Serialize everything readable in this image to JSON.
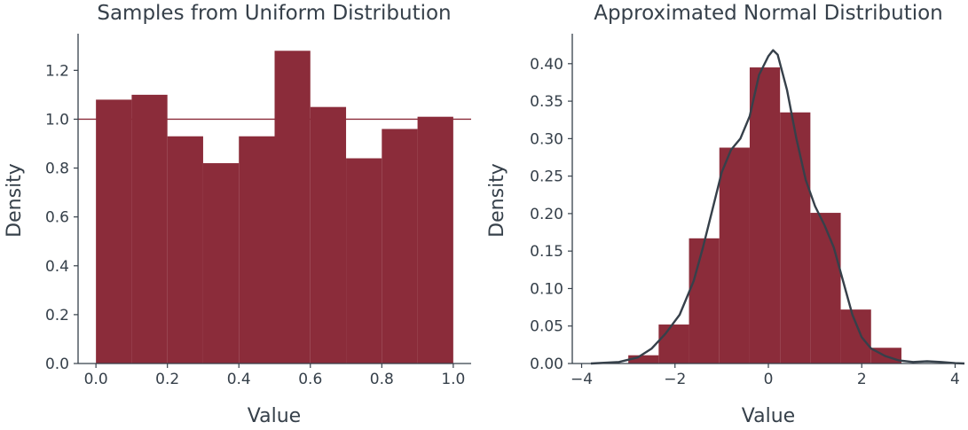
{
  "chart_data": [
    {
      "type": "bar",
      "title": "Samples from Uniform Distribution",
      "xlabel": "Value",
      "ylabel": "Density",
      "xlim": [
        -0.05,
        1.05
      ],
      "ylim": [
        0,
        1.35
      ],
      "xticks": [
        0.0,
        0.2,
        0.4,
        0.6,
        0.8,
        1.0
      ],
      "yticks": [
        0.0,
        0.2,
        0.4,
        0.6,
        0.8,
        1.0,
        1.2
      ],
      "xtick_labels": [
        "0.0",
        "0.2",
        "0.4",
        "0.6",
        "0.8",
        "1.0"
      ],
      "ytick_labels": [
        "0.0",
        "0.2",
        "0.4",
        "0.6",
        "0.8",
        "1.0",
        "1.2"
      ],
      "bin_edges": [
        0.0,
        0.1,
        0.2,
        0.3,
        0.4,
        0.5,
        0.6,
        0.7,
        0.8,
        0.9,
        1.0
      ],
      "values": [
        1.08,
        1.1,
        0.93,
        0.82,
        0.93,
        1.28,
        1.05,
        0.84,
        0.96,
        1.01
      ],
      "reference_line_y": 1.0,
      "bar_color": "#8b2c3a",
      "line_color": "#8b2c3a",
      "grid": false
    },
    {
      "type": "bar",
      "title": "Approximated Normal Distribution",
      "xlabel": "Value",
      "ylabel": "Density",
      "xlim": [
        -4.2,
        4.2
      ],
      "ylim": [
        0,
        0.44
      ],
      "xticks": [
        -4,
        -2,
        0,
        2,
        4
      ],
      "yticks": [
        0.0,
        0.05,
        0.1,
        0.15,
        0.2,
        0.25,
        0.3,
        0.35,
        0.4
      ],
      "xtick_labels": [
        "−4",
        "−2",
        "0",
        "2",
        "4"
      ],
      "ytick_labels": [
        "0.00",
        "0.05",
        "0.10",
        "0.15",
        "0.20",
        "0.25",
        "0.30",
        "0.35",
        "0.40"
      ],
      "bin_edges": [
        -3.0,
        -2.35,
        -1.7,
        -1.05,
        -0.4,
        0.25,
        0.9,
        1.55,
        2.2,
        2.85
      ],
      "values": [
        0.011,
        0.052,
        0.167,
        0.288,
        0.395,
        0.335,
        0.201,
        0.072,
        0.021
      ],
      "bar_color": "#8b2c3a",
      "kde_color": "#36404a",
      "kde": {
        "x": [
          -3.8,
          -3.2,
          -2.8,
          -2.5,
          -2.2,
          -1.9,
          -1.6,
          -1.4,
          -1.2,
          -1.0,
          -0.8,
          -0.6,
          -0.4,
          -0.2,
          0.0,
          0.1,
          0.2,
          0.4,
          0.6,
          0.8,
          1.0,
          1.2,
          1.4,
          1.6,
          1.8,
          2.0,
          2.2,
          2.5,
          2.8,
          3.1,
          3.4,
          3.7,
          4.0,
          4.2
        ],
        "y": [
          0.0,
          0.002,
          0.008,
          0.02,
          0.04,
          0.065,
          0.11,
          0.155,
          0.205,
          0.255,
          0.285,
          0.3,
          0.33,
          0.385,
          0.41,
          0.418,
          0.412,
          0.365,
          0.3,
          0.245,
          0.21,
          0.185,
          0.155,
          0.11,
          0.065,
          0.035,
          0.02,
          0.01,
          0.004,
          0.002,
          0.003,
          0.002,
          0.0005,
          0.0
        ]
      },
      "grid": false
    }
  ]
}
